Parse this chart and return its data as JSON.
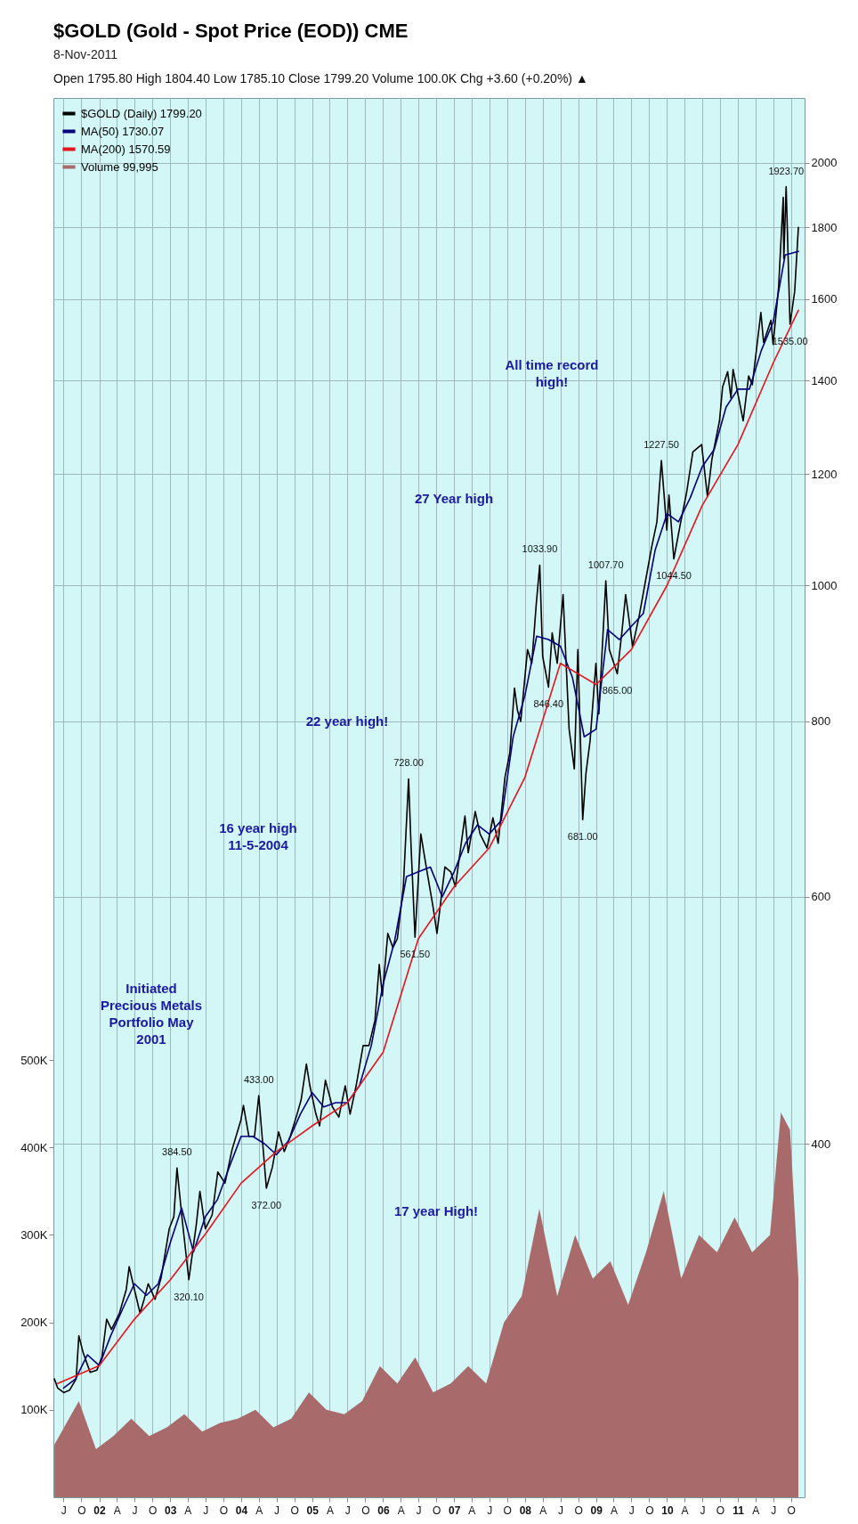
{
  "chart_data": {
    "type": "line",
    "title": "$GOLD (Gold - Spot Price (EOD)) CME",
    "subtitle": "8-Nov-2011",
    "xlim": [
      "2001-05-10",
      "2011-12-10"
    ],
    "xticks": [
      {
        "value": "2001-07",
        "label": "J"
      },
      {
        "value": "2001-10",
        "label": "O"
      },
      {
        "value": "2002-01",
        "label": "02"
      },
      {
        "value": "2002-04",
        "label": "A"
      },
      {
        "value": "2002-07",
        "label": "J"
      },
      {
        "value": "2002-10",
        "label": "O"
      },
      {
        "value": "2003-01",
        "label": "03"
      },
      {
        "value": "2003-04",
        "label": "A"
      },
      {
        "value": "2003-07",
        "label": "J"
      },
      {
        "value": "2003-10",
        "label": "O"
      },
      {
        "value": "2004-01",
        "label": "04"
      },
      {
        "value": "2004-04",
        "label": "A"
      },
      {
        "value": "2004-07",
        "label": "J"
      },
      {
        "value": "2004-10",
        "label": "O"
      },
      {
        "value": "2005-01",
        "label": "05"
      },
      {
        "value": "2005-04",
        "label": "A"
      },
      {
        "value": "2005-07",
        "label": "J"
      },
      {
        "value": "2005-10",
        "label": "O"
      },
      {
        "value": "2006-01",
        "label": "06"
      },
      {
        "value": "2006-04",
        "label": "A"
      },
      {
        "value": "2006-07",
        "label": "J"
      },
      {
        "value": "2006-10",
        "label": "O"
      },
      {
        "value": "2007-01",
        "label": "07"
      },
      {
        "value": "2007-04",
        "label": "A"
      },
      {
        "value": "2007-07",
        "label": "J"
      },
      {
        "value": "2007-10",
        "label": "O"
      },
      {
        "value": "2008-01",
        "label": "08"
      },
      {
        "value": "2008-04",
        "label": "A"
      },
      {
        "value": "2008-07",
        "label": "J"
      },
      {
        "value": "2008-10",
        "label": "O"
      },
      {
        "value": "2009-01",
        "label": "09"
      },
      {
        "value": "2009-04",
        "label": "A"
      },
      {
        "value": "2009-07",
        "label": "J"
      },
      {
        "value": "2009-10",
        "label": "O"
      },
      {
        "value": "2010-01",
        "label": "10"
      },
      {
        "value": "2010-04",
        "label": "A"
      },
      {
        "value": "2010-07",
        "label": "J"
      },
      {
        "value": "2010-10",
        "label": "O"
      },
      {
        "value": "2011-01",
        "label": "11"
      },
      {
        "value": "2011-04",
        "label": "A"
      },
      {
        "value": "2011-07",
        "label": "J"
      },
      {
        "value": "2011-10",
        "label": "O"
      }
    ],
    "ylim": [
      0,
      1600000
    ],
    "yticks": [
      {
        "value": 100000,
        "label": "100K"
      },
      {
        "value": 200000,
        "label": "200K"
      },
      {
        "value": 300000,
        "label": "300K"
      },
      {
        "value": 400000,
        "label": "400K"
      },
      {
        "value": 500000,
        "label": "500K"
      }
    ],
    "y2lim": [
      224,
      2225
    ],
    "y2ticks": [
      400,
      600,
      800,
      1000,
      1200,
      1400,
      1600,
      1800,
      2000
    ],
    "log": "y2",
    "grid": true,
    "legend": "top left",
    "series": [
      {
        "name": "$GOLD (Daily) 1799.20",
        "color": "#000000",
        "axis": "y2",
        "x": [
          "2001-05-15",
          "2001-06-01",
          "2001-07-02",
          "2001-08-01",
          "2001-09-04",
          "2001-09-18",
          "2001-10-10",
          "2001-11-15",
          "2001-12-20",
          "2002-01-15",
          "2002-02-08",
          "2002-03-05",
          "2002-04-15",
          "2002-05-20",
          "2002-06-04",
          "2002-07-01",
          "2002-07-30",
          "2002-08-20",
          "2002-09-10",
          "2002-10-15",
          "2002-11-15",
          "2002-12-27",
          "2003-01-20",
          "2003-02-05",
          "2003-03-05",
          "2003-04-07",
          "2003-05-15",
          "2003-06-03",
          "2003-07-01",
          "2003-08-05",
          "2003-09-03",
          "2003-10-10",
          "2003-11-15",
          "2003-12-31",
          "2004-01-13",
          "2004-02-10",
          "2004-03-10",
          "2004-04-01",
          "2004-05-10",
          "2004-06-10",
          "2004-07-12",
          "2004-08-10",
          "2004-09-10",
          "2004-10-15",
          "2004-11-05",
          "2004-12-02",
          "2004-12-20",
          "2005-01-20",
          "2005-02-08",
          "2005-03-10",
          "2005-04-15",
          "2005-05-18",
          "2005-06-20",
          "2005-07-15",
          "2005-08-15",
          "2005-09-20",
          "2005-10-20",
          "2005-11-20",
          "2005-12-12",
          "2005-12-28",
          "2006-01-25",
          "2006-02-20",
          "2006-03-15",
          "2006-04-15",
          "2006-05-12",
          "2006-05-25",
          "2006-06-14",
          "2006-07-14",
          "2006-08-15",
          "2006-09-15",
          "2006-10-05",
          "2006-11-15",
          "2006-12-15",
          "2007-01-08",
          "2007-02-26",
          "2007-03-15",
          "2007-04-20",
          "2007-05-15",
          "2007-06-20",
          "2007-07-20",
          "2007-08-16",
          "2007-09-20",
          "2007-10-15",
          "2007-11-08",
          "2007-11-23",
          "2007-12-10",
          "2008-01-14",
          "2008-02-05",
          "2008-02-28",
          "2008-03-17",
          "2008-04-01",
          "2008-05-01",
          "2008-05-20",
          "2008-06-15",
          "2008-07-15",
          "2008-08-15",
          "2008-09-11",
          "2008-09-29",
          "2008-10-24",
          "2008-11-10",
          "2008-12-01",
          "2008-12-31",
          "2009-01-15",
          "2009-02-20",
          "2009-03-10",
          "2009-04-20",
          "2009-05-15",
          "2009-06-02",
          "2009-07-08",
          "2009-08-10",
          "2009-09-08",
          "2009-10-14",
          "2009-11-10",
          "2009-12-03",
          "2009-12-31",
          "2010-01-11",
          "2010-02-05",
          "2010-03-10",
          "2010-04-12",
          "2010-05-14",
          "2010-06-28",
          "2010-07-28",
          "2010-08-20",
          "2010-09-28",
          "2010-10-14",
          "2010-11-09",
          "2010-11-26",
          "2010-12-07",
          "2011-01-28",
          "2011-02-25",
          "2011-03-16",
          "2011-04-29",
          "2011-05-13",
          "2011-06-20",
          "2011-07-01",
          "2011-07-29",
          "2011-08-22",
          "2011-08-25",
          "2011-09-06",
          "2011-09-26",
          "2011-10-20",
          "2011-11-08"
        ],
        "values": [
          272,
          268,
          266,
          267,
          272,
          292,
          284,
          275,
          276,
          282,
          300,
          295,
          303,
          315,
          327,
          315,
          303,
          310,
          318,
          310,
          321,
          348,
          355,
          384.5,
          352,
          320.1,
          350,
          370,
          348,
          356,
          382,
          375,
          396,
          416,
          426,
          405,
          405,
          433,
          372,
          385,
          408,
          395,
          405,
          420,
          430,
          456,
          440,
          420,
          412,
          444,
          425,
          418,
          440,
          420,
          440,
          470,
          470,
          490,
          537,
          510,
          565,
          552,
          560,
          610,
          728,
          650,
          561.5,
          665,
          625,
          590,
          565,
          630,
          625,
          610,
          685,
          645,
          690,
          665,
          650,
          683,
          655,
          730,
          760,
          845,
          815,
          800,
          900,
          880,
          970,
          1033.9,
          890,
          846.4,
          925,
          880,
          985,
          790,
          740,
          900,
          681,
          735,
          775,
          880,
          810,
          1007.7,
          900,
          865,
          930,
          985,
          905,
          950,
          1000,
          1065,
          1110,
          1227.5,
          1095,
          1160,
          1044.5,
          1105,
          1165,
          1245,
          1260,
          1157,
          1230,
          1310,
          1385,
          1420,
          1360,
          1425,
          1310,
          1410,
          1390,
          1565,
          1490,
          1545,
          1485,
          1630,
          1890,
          1710,
          1923.7,
          1535,
          1620,
          1799.2
        ],
        "value_labels": [
          null,
          null,
          null,
          null,
          null,
          null,
          null,
          null,
          null,
          null,
          null,
          null,
          null,
          null,
          null,
          null,
          null,
          null,
          null,
          null,
          null,
          null,
          null,
          "384.50",
          null,
          "320.10",
          null,
          null,
          null,
          null,
          null,
          null,
          null,
          null,
          null,
          null,
          null,
          "433.00",
          "372.00",
          null,
          null,
          null,
          null,
          null,
          null,
          null,
          null,
          null,
          null,
          null,
          null,
          null,
          null,
          null,
          null,
          null,
          null,
          null,
          null,
          null,
          null,
          null,
          null,
          null,
          "728.00",
          null,
          "561.50",
          null,
          null,
          null,
          null,
          null,
          null,
          null,
          null,
          null,
          null,
          null,
          null,
          null,
          null,
          null,
          null,
          null,
          null,
          null,
          null,
          null,
          null,
          "1033.90",
          null,
          "846.40",
          null,
          null,
          null,
          null,
          null,
          null,
          "681.00",
          null,
          null,
          null,
          null,
          "1007.70",
          null,
          "865.00",
          null,
          null,
          null,
          null,
          null,
          null,
          null,
          "1227.50",
          null,
          null,
          "1044.50",
          null,
          null,
          null,
          null,
          null,
          null,
          null,
          null,
          null,
          null,
          null,
          null,
          null,
          null,
          null,
          null,
          null,
          null,
          null,
          null,
          null,
          "1923.70",
          "1535.00",
          null,
          null
        ]
      },
      {
        "name": "MA(50) 1730.07",
        "color": "#000080",
        "axis": "y2",
        "x": [
          "2001-07-01",
          "2001-09-01",
          "2001-11-01",
          "2002-01-01",
          "2002-03-01",
          "2002-05-01",
          "2002-07-01",
          "2002-09-01",
          "2002-11-01",
          "2003-01-01",
          "2003-03-01",
          "2003-05-01",
          "2003-07-01",
          "2003-09-01",
          "2003-11-01",
          "2004-01-01",
          "2004-03-01",
          "2004-05-01",
          "2004-07-01",
          "2004-09-01",
          "2004-11-01",
          "2005-01-01",
          "2005-03-01",
          "2005-05-01",
          "2005-07-01",
          "2005-09-01",
          "2005-11-01",
          "2006-01-01",
          "2006-03-01",
          "2006-05-01",
          "2006-07-01",
          "2006-09-01",
          "2006-11-01",
          "2007-01-01",
          "2007-03-01",
          "2007-05-01",
          "2007-07-01",
          "2007-09-01",
          "2007-11-01",
          "2008-01-01",
          "2008-03-01",
          "2008-05-01",
          "2008-07-01",
          "2008-09-01",
          "2008-11-01",
          "2009-01-01",
          "2009-03-01",
          "2009-05-01",
          "2009-07-01",
          "2009-09-01",
          "2009-11-01",
          "2010-01-01",
          "2010-03-01",
          "2010-05-01",
          "2010-07-01",
          "2010-09-01",
          "2010-11-01",
          "2011-01-01",
          "2011-03-01",
          "2011-05-01",
          "2011-07-01",
          "2011-09-01",
          "2011-11-08"
        ],
        "values": [
          268,
          272,
          283,
          278,
          292,
          305,
          318,
          312,
          318,
          340,
          360,
          335,
          355,
          365,
          385,
          405,
          405,
          400,
          393,
          402,
          420,
          435,
          425,
          428,
          428,
          440,
          470,
          520,
          558,
          620,
          625,
          630,
          600,
          625,
          655,
          675,
          665,
          680,
          780,
          835,
          920,
          915,
          905,
          860,
          780,
          790,
          930,
          915,
          935,
          955,
          1060,
          1125,
          1110,
          1155,
          1215,
          1250,
          1340,
          1380,
          1380,
          1470,
          1540,
          1720,
          1730.07
        ]
      },
      {
        "name": "MA(200) 1570.59",
        "color": "#e8141c",
        "axis": "y2",
        "x": [
          "2001-06-01",
          "2002-01-01",
          "2002-07-01",
          "2003-01-01",
          "2003-07-01",
          "2004-01-01",
          "2004-07-01",
          "2005-01-01",
          "2005-07-01",
          "2006-01-01",
          "2006-07-01",
          "2007-01-01",
          "2007-07-01",
          "2008-01-01",
          "2008-07-01",
          "2009-01-01",
          "2009-07-01",
          "2010-01-01",
          "2010-07-01",
          "2011-01-01",
          "2011-07-01",
          "2011-11-08"
        ],
        "values": [
          270,
          278,
          300,
          320,
          345,
          375,
          395,
          412,
          428,
          465,
          560,
          610,
          650,
          730,
          880,
          850,
          900,
          1000,
          1140,
          1260,
          1440,
          1570.59
        ]
      },
      {
        "name": "Volume 99,995",
        "color": "#a86a6a",
        "type": "area",
        "x": [
          "2001-05-15",
          "2001-09-18",
          "2001-12-15",
          "2002-03-15",
          "2002-06-15",
          "2002-09-15",
          "2002-12-15",
          "2003-03-15",
          "2003-06-15",
          "2003-09-15",
          "2003-12-15",
          "2004-03-15",
          "2004-06-15",
          "2004-09-15",
          "2004-12-15",
          "2005-03-15",
          "2005-06-15",
          "2005-09-15",
          "2005-12-15",
          "2006-03-15",
          "2006-06-15",
          "2006-09-15",
          "2006-12-15",
          "2007-03-15",
          "2007-06-15",
          "2007-09-15",
          "2007-12-15",
          "2008-03-15",
          "2008-06-15",
          "2008-09-15",
          "2008-12-15",
          "2009-03-15",
          "2009-06-15",
          "2009-09-15",
          "2009-12-15",
          "2010-03-15",
          "2010-06-15",
          "2010-09-15",
          "2010-12-15",
          "2011-03-15",
          "2011-06-15",
          "2011-08-10",
          "2011-09-26",
          "2011-11-08"
        ],
        "values": [
          60000,
          110000,
          55000,
          70000,
          90000,
          70000,
          80000,
          95000,
          75000,
          85000,
          90000,
          100000,
          80000,
          90000,
          120000,
          100000,
          95000,
          110000,
          150000,
          130000,
          160000,
          120000,
          130000,
          150000,
          130000,
          200000,
          230000,
          330000,
          230000,
          300000,
          250000,
          270000,
          220000,
          280000,
          350000,
          250000,
          300000,
          280000,
          320000,
          280000,
          300000,
          440000,
          420000,
          250000
        ]
      }
    ],
    "annotations": [
      "Initiated Precious Metals Portfolio May 2001",
      "16 year high 11-5-2004",
      "22 year high!",
      "17 year High!",
      "27 Year high",
      "All time record high!",
      "Open 1795.80 High 1804.40 Low 1785.10 Close 1799.20 Volume 100.0K Chg +3.60 (+0.20%) ▲"
    ]
  }
}
